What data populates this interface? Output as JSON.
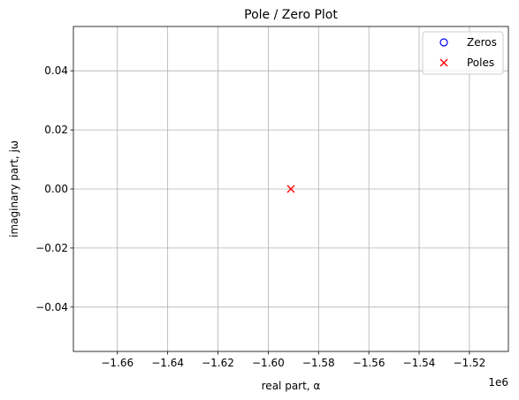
{
  "chart_data": {
    "type": "scatter",
    "title": "Pole / Zero Plot",
    "xlabel": "real part, α",
    "ylabel": "imaginary part, jω",
    "x_offset_label": "1e6",
    "xlim": [
      -1.6775,
      -1.5045
    ],
    "ylim": [
      -0.055,
      0.055
    ],
    "x_ticks": [
      -1.66,
      -1.64,
      -1.62,
      -1.6,
      -1.58,
      -1.56,
      -1.54,
      -1.52
    ],
    "x_tick_labels": [
      "−1.66",
      "−1.64",
      "−1.62",
      "−1.60",
      "−1.58",
      "−1.56",
      "−1.54",
      "−1.52"
    ],
    "y_ticks": [
      -0.04,
      -0.02,
      0.0,
      0.02,
      0.04
    ],
    "y_tick_labels": [
      "−0.04",
      "−0.02",
      "0.00",
      "0.02",
      "0.04"
    ],
    "grid": true,
    "legend_position": "top-right",
    "series": [
      {
        "name": "Zeros",
        "marker": "circle",
        "color": "#0000ff",
        "points": []
      },
      {
        "name": "Poles",
        "marker": "x",
        "color": "#ff0000",
        "points": [
          {
            "x": -1.591,
            "y": 0.0
          }
        ]
      }
    ]
  }
}
